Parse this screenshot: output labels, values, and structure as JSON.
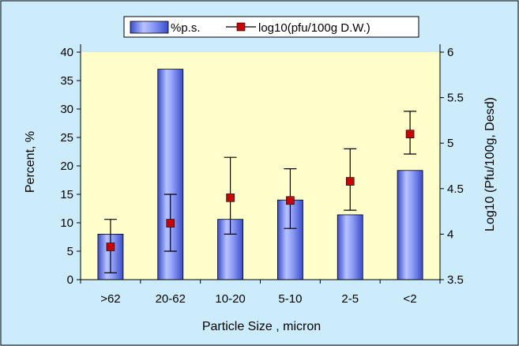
{
  "chart_data": {
    "type": "bar",
    "categories": [
      ">62",
      "20-62",
      "10-20",
      "5-10",
      "2-5",
      "<2"
    ],
    "xlabel": "Particle Size ,  micron",
    "ylabel": "Percent, %",
    "y2label": "Log10 (Pfu/100g, Desd)",
    "ylim": [
      0,
      40
    ],
    "y2lim": [
      3.5,
      6
    ],
    "yticks": [
      0,
      5,
      10,
      15,
      20,
      25,
      30,
      35,
      40
    ],
    "y2ticks": [
      "3.5",
      "4",
      "4.5",
      "5",
      "5.5",
      "6"
    ],
    "grid": false,
    "legend_position": "top-center",
    "series": [
      {
        "name": "%p.s.",
        "type": "bar",
        "axis": "left",
        "values": [
          8.0,
          37.0,
          10.6,
          14.0,
          11.4,
          19.2
        ],
        "error_low": [
          1.2,
          5.0,
          8.0,
          9.0,
          12.2,
          null
        ],
        "error_high": [
          10.6,
          15.0,
          21.5,
          19.5,
          23.0,
          null
        ],
        "color": "#7b8ff0"
      },
      {
        "name": "log10(pfu/100g D.W.)",
        "type": "line-markers",
        "axis": "right",
        "values": [
          3.86,
          4.12,
          4.4,
          4.37,
          4.58,
          5.1
        ],
        "error_low": [
          null,
          null,
          null,
          null,
          null,
          4.88
        ],
        "error_high": [
          null,
          null,
          null,
          null,
          null,
          5.35
        ],
        "color": "#cc0000"
      }
    ]
  },
  "colors": {
    "background": "#ccecfb",
    "plot_area": "#ffffcc",
    "bar_fill": "#7b8ff0",
    "marker": "#cc0000"
  }
}
